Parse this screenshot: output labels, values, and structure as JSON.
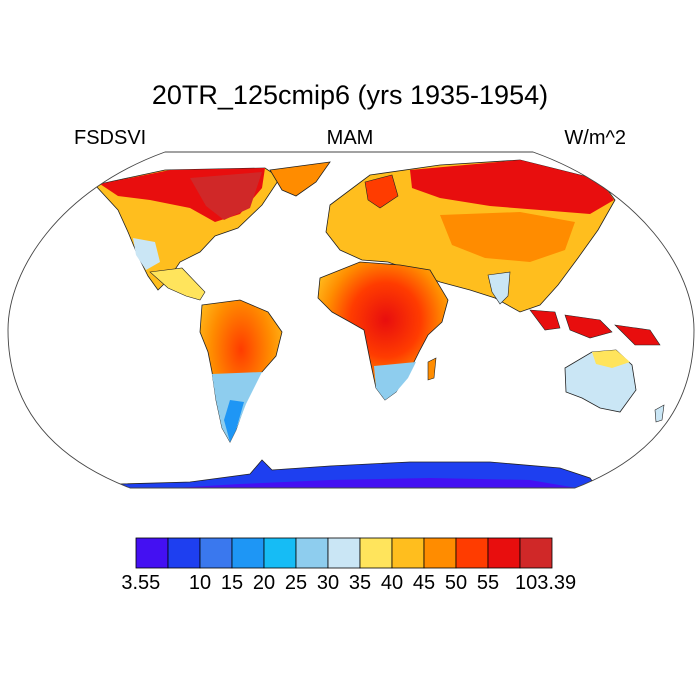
{
  "title": "20TR_125cmip6 (yrs 1935-1954)",
  "subtitle_left": "FSDSVI",
  "subtitle_center": "MAM",
  "subtitle_right": "W/m^2",
  "colorbar": {
    "colors": [
      "#4410f2",
      "#1e3ff0",
      "#3a78ee",
      "#1e96f5",
      "#16bcf5",
      "#8ecdee",
      "#cae6f5",
      "#ffe45c",
      "#ffbe1e",
      "#ff8c00",
      "#ff3c00",
      "#e80e0e",
      "#d02828"
    ],
    "tick_labels": [
      "3.55",
      "10",
      "15",
      "20",
      "25",
      "30",
      "35",
      "40",
      "45",
      "50",
      "55",
      "103.39"
    ]
  },
  "chart_data": {
    "type": "heatmap",
    "title": "20TR_125cmip6 (yrs 1935-1954)",
    "variable": "FSDSVI",
    "season": "MAM",
    "units": "W/m^2",
    "projection": "Robinson",
    "levels": [
      3.55,
      10,
      15,
      20,
      25,
      30,
      35,
      40,
      45,
      50,
      55,
      103.39
    ],
    "regions": [
      {
        "name": "Antarctica",
        "level_bin": [
          3.55,
          10
        ]
      },
      {
        "name": "Southern South America",
        "level_bin": [
          25,
          35
        ]
      },
      {
        "name": "Southern Africa",
        "level_bin": [
          30,
          35
        ]
      },
      {
        "name": "Australia",
        "level_bin": [
          30,
          35
        ]
      },
      {
        "name": "Central Africa",
        "level_bin": [
          55,
          103.39
        ]
      },
      {
        "name": "Amazon",
        "level_bin": [
          50,
          55
        ]
      },
      {
        "name": "Maritime Continent",
        "level_bin": [
          55,
          103.39
        ]
      },
      {
        "name": "Northern Canada",
        "level_bin": [
          55,
          103.39
        ]
      },
      {
        "name": "Northern Siberia",
        "level_bin": [
          55,
          103.39
        ]
      },
      {
        "name": "Europe",
        "level_bin": [
          40,
          50
        ]
      },
      {
        "name": "Central Asia",
        "level_bin": [
          45,
          55
        ]
      }
    ]
  }
}
